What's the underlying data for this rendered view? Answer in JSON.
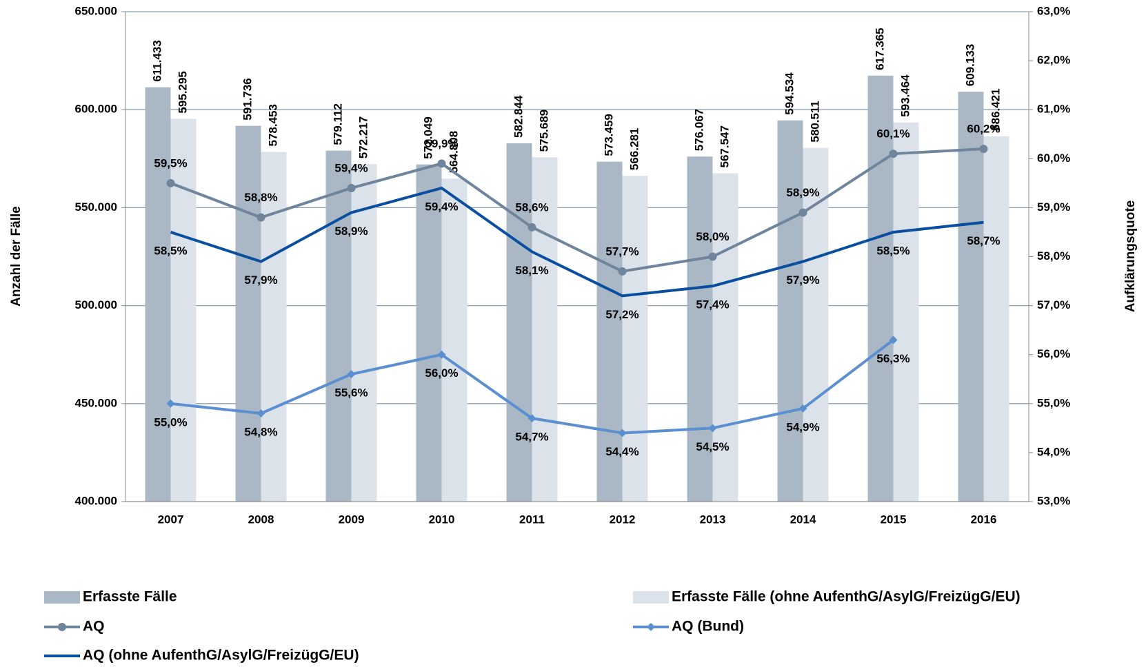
{
  "chart_data": {
    "type": "bar_line",
    "categories": [
      "2007",
      "2008",
      "2009",
      "2010",
      "2011",
      "2012",
      "2013",
      "2014",
      "2015",
      "2016"
    ],
    "y_label": "Anzahl der Fälle",
    "y2_label": "Aufklärungsquote",
    "ylim": [
      400000,
      650000
    ],
    "yticks": [
      {
        "value": 400000,
        "label": "400.000"
      },
      {
        "value": 450000,
        "label": "450.000"
      },
      {
        "value": 500000,
        "label": "500.000"
      },
      {
        "value": 550000,
        "label": "550.000"
      },
      {
        "value": 600000,
        "label": "600.000"
      },
      {
        "value": 650000,
        "label": "650.000"
      }
    ],
    "y2lim": [
      53,
      63
    ],
    "y2ticks": [
      {
        "value": 53,
        "label": "53,0%"
      },
      {
        "value": 54,
        "label": "54,0%"
      },
      {
        "value": 55,
        "label": "55,0%"
      },
      {
        "value": 56,
        "label": "56,0%"
      },
      {
        "value": 57,
        "label": "57,0%"
      },
      {
        "value": 58,
        "label": "58,0%"
      },
      {
        "value": 59,
        "label": "59,0%"
      },
      {
        "value": 60,
        "label": "60,0%"
      },
      {
        "value": 61,
        "label": "61,0%"
      },
      {
        "value": 62,
        "label": "62,0%"
      },
      {
        "value": 63,
        "label": "63,0%"
      }
    ],
    "grid": true,
    "series": [
      {
        "name": "Erfasste Fälle",
        "type": "bar",
        "color": "#aab8c6",
        "values": [
          611433,
          591736,
          579112,
          572049,
          582844,
          573459,
          576067,
          594534,
          617365,
          609133
        ],
        "value_labels": [
          "611.433",
          "591.736",
          "579.112",
          "572.049",
          "582.844",
          "573.459",
          "576.067",
          "594.534",
          "617.365",
          "609.133"
        ]
      },
      {
        "name": "Erfasste Fälle (ohne AufenthG/AsylG/FreizügG/EU)",
        "type": "bar",
        "color": "#dce2ea",
        "values": [
          595295,
          578453,
          572217,
          564808,
          575689,
          566281,
          567547,
          580511,
          593464,
          586421
        ],
        "value_labels": [
          "595.295",
          "578.453",
          "572.217",
          "564.808",
          "575.689",
          "566.281",
          "567.547",
          "580.511",
          "593.464",
          "586.421"
        ]
      },
      {
        "name": "AQ",
        "type": "line",
        "axis": "y2",
        "color": "#6f859c",
        "marker": "circle",
        "values": [
          59.5,
          58.8,
          59.4,
          59.9,
          58.6,
          57.7,
          58.0,
          58.9,
          60.1,
          60.2
        ],
        "value_labels": [
          "59,5%",
          "58,8%",
          "59,4%",
          "59,9%",
          "58,6%",
          "57,7%",
          "58,0%",
          "58,9%",
          "60,1%",
          "60,2%"
        ]
      },
      {
        "name": "AQ (Bund)",
        "type": "line",
        "axis": "y2",
        "color": "#5b8fd0",
        "marker": "diamond",
        "values": [
          55.0,
          54.8,
          55.6,
          56.0,
          54.7,
          54.4,
          54.5,
          54.9,
          56.3,
          null
        ],
        "value_labels": [
          "55,0%",
          "54,8%",
          "55,6%",
          "56,0%",
          "54,7%",
          "54,4%",
          "54,5%",
          "54,9%",
          "56,3%",
          null
        ]
      },
      {
        "name": "AQ (ohne AufenthG/AsylG/FreizügG/EU)",
        "type": "line",
        "axis": "y2",
        "color": "#0a4ea0",
        "marker": "none",
        "values": [
          58.5,
          57.9,
          58.9,
          59.4,
          58.1,
          57.2,
          57.4,
          57.9,
          58.5,
          58.7
        ],
        "value_labels": [
          "58,5%",
          "57,9%",
          "58,9%",
          "59,4%",
          "58,1%",
          "57,2%",
          "57,4%",
          "57,9%",
          "58,5%",
          "58,7%"
        ]
      }
    ]
  }
}
